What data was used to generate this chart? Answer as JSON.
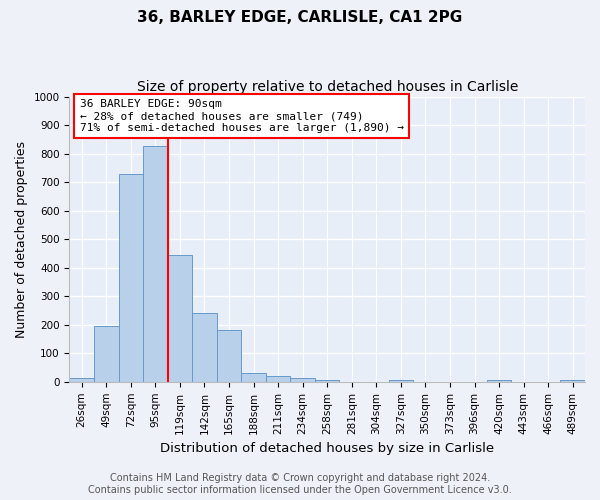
{
  "title": "36, BARLEY EDGE, CARLISLE, CA1 2PG",
  "subtitle": "Size of property relative to detached houses in Carlisle",
  "xlabel": "Distribution of detached houses by size in Carlisle",
  "ylabel": "Number of detached properties",
  "bar_labels": [
    "26sqm",
    "49sqm",
    "72sqm",
    "95sqm",
    "119sqm",
    "142sqm",
    "165sqm",
    "188sqm",
    "211sqm",
    "234sqm",
    "258sqm",
    "281sqm",
    "304sqm",
    "327sqm",
    "350sqm",
    "373sqm",
    "396sqm",
    "420sqm",
    "443sqm",
    "466sqm",
    "489sqm"
  ],
  "bar_values": [
    15,
    195,
    730,
    825,
    445,
    240,
    180,
    30,
    20,
    15,
    5,
    0,
    0,
    8,
    0,
    0,
    0,
    8,
    0,
    0,
    8
  ],
  "bar_color": "#b8d0ea",
  "bar_edgecolor": "#6699cc",
  "vline_x_index": 3.5,
  "vline_color": "red",
  "annotation_text": "36 BARLEY EDGE: 90sqm\n← 28% of detached houses are smaller (749)\n71% of semi-detached houses are larger (1,890) →",
  "annotation_box_facecolor": "white",
  "annotation_box_edgecolor": "red",
  "ylim": [
    0,
    1000
  ],
  "yticks": [
    0,
    100,
    200,
    300,
    400,
    500,
    600,
    700,
    800,
    900,
    1000
  ],
  "footer_text": "Contains HM Land Registry data © Crown copyright and database right 2024.\nContains public sector information licensed under the Open Government Licence v3.0.",
  "fig_facecolor": "#eef2f8",
  "ax_facecolor": "#e8eef8",
  "grid_color": "#ffffff",
  "title_fontsize": 11,
  "subtitle_fontsize": 10,
  "xlabel_fontsize": 9.5,
  "ylabel_fontsize": 9,
  "tick_fontsize": 7.5,
  "annotation_fontsize": 8,
  "footer_fontsize": 7
}
